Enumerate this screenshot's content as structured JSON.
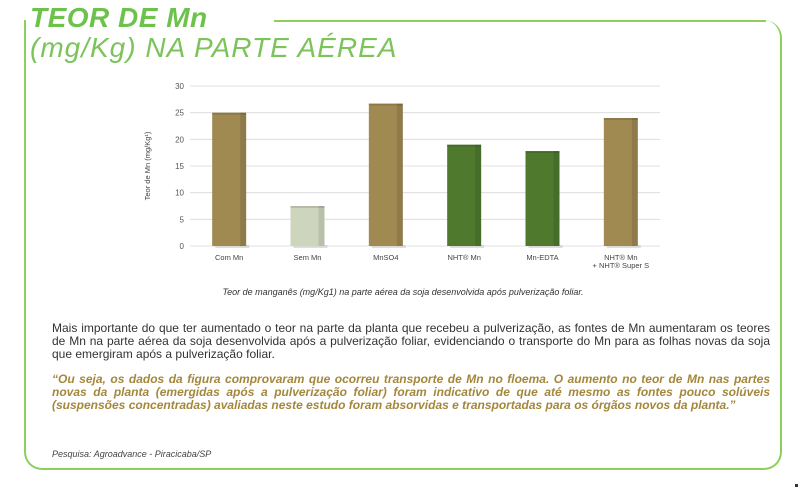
{
  "header": {
    "title": "TEOR DE Mn",
    "subtitle": "(mg/Kg) NA PARTE AÉREA"
  },
  "chart_data": {
    "type": "bar",
    "categories": [
      "Com Mn",
      "Sem Mn",
      "MnSO4",
      "NHT® Mn",
      "Mn-EDTA",
      "NHT® Mn + NHT® Super S"
    ],
    "category_lines": [
      [
        "Com Mn"
      ],
      [
        "Sem Mn"
      ],
      [
        "MnSO4"
      ],
      [
        "NHT® Mn"
      ],
      [
        "Mn-EDTA"
      ],
      [
        "NHT® Mn",
        "+ NHT® Super S"
      ]
    ],
    "values": [
      25,
      7.5,
      26.7,
      19,
      17.8,
      24
    ],
    "bar_colors": [
      "#a08a52",
      "#cdd6bd",
      "#a08a52",
      "#4f7a2e",
      "#4f7a2e",
      "#a08a52"
    ],
    "ylabel": "Teor de Mn (mg/Kg¹)",
    "ylim": [
      0,
      30
    ],
    "yticks": [
      0,
      5,
      10,
      15,
      20,
      25,
      30
    ],
    "grid": true,
    "caption": "Teor de manganês (mg/Kg1) na parte aérea da soja desenvolvida após pulverização foliar."
  },
  "body": {
    "paragraph": "Mais importante do que ter aumentado o teor na parte da planta que recebeu a pulverização, as fontes de Mn aumentaram os teores de Mn na parte aérea da soja desenvolvida após a pulverização foliar, evidenciando o transporte do Mn para as folhas novas da soja que emergiram após a pulverização foliar.",
    "quote": "“Ou seja, os dados da figura  comprovaram que ocorreu transporte de Mn no floema. O aumento no teor de Mn nas partes novas da planta (emergidas após a pulverização foliar) foram indicativo de que até mesmo as fontes pouco solúveis (suspensões concentradas) avaliadas neste estudo foram absorvidas e transportadas para os órgãos novos da planta.”",
    "source": "Pesquisa: Agroadvance - Piracicaba/SP"
  },
  "colors": {
    "accent": "#6cc24a",
    "quote": "#a3873b"
  }
}
